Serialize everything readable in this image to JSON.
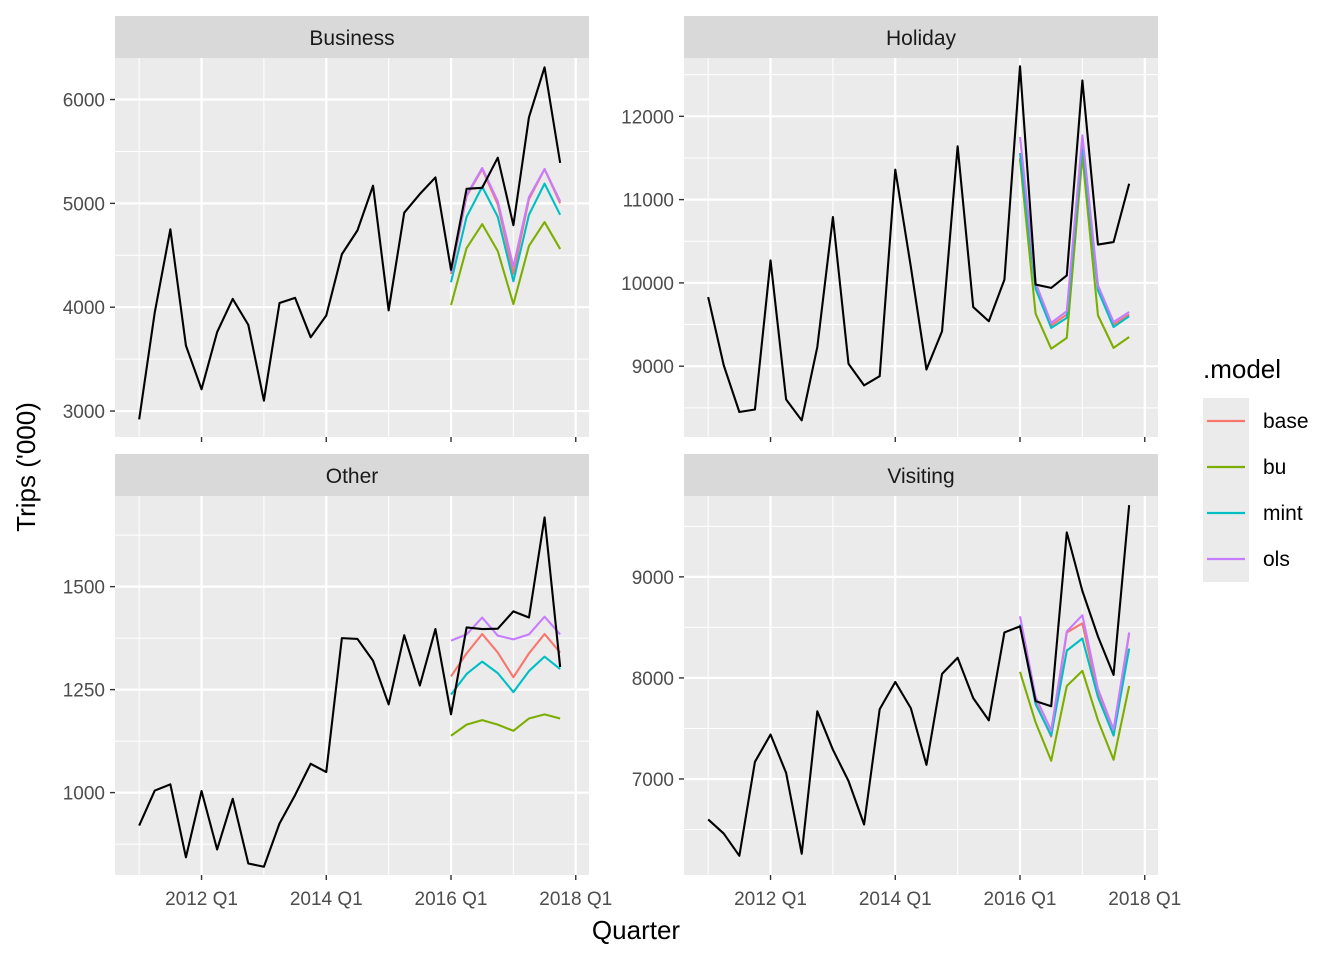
{
  "chart_data": {
    "type": "line",
    "xlabel": "Quarter",
    "ylabel": "Trips ('000)",
    "x_ticks": [
      "2012 Q1",
      "2014 Q1",
      "2016 Q1",
      "2018 Q1"
    ],
    "legend": {
      "title": ".model",
      "placement": "right",
      "entries": [
        {
          "name": "base",
          "color": "#F8766D"
        },
        {
          "name": "bu",
          "color": "#7CAE00"
        },
        {
          "name": "mint",
          "color": "#00BFC4"
        },
        {
          "name": "ols",
          "color": "#C77CFF"
        }
      ]
    },
    "grid": true,
    "x_start": "2011 Q1",
    "x_end": "2017 Q4",
    "forecast_start": "2016 Q1",
    "panels": [
      {
        "name": "Business",
        "ylim": [
          2750,
          6400
        ],
        "y_ticks": [
          3000,
          4000,
          5000,
          6000
        ],
        "actual": [
          2920,
          3950,
          4750,
          3630,
          3210,
          3760,
          4080,
          3830,
          3100,
          4040,
          4090,
          3710,
          3920,
          4510,
          4740,
          5170,
          3970,
          4910,
          5090,
          5250,
          4360,
          5140,
          5150,
          5440,
          4790,
          5830,
          6310,
          5390
        ],
        "forecasts": {
          "base": [
            4320,
            5070,
            5330,
            4990,
            4320,
            5040,
            5330,
            5000
          ],
          "bu": [
            4020,
            4570,
            4800,
            4540,
            4030,
            4590,
            4820,
            4560
          ],
          "mint": [
            4240,
            4870,
            5160,
            4870,
            4250,
            4890,
            5190,
            4890
          ],
          "ols": [
            4340,
            5080,
            5340,
            5020,
            4390,
            5060,
            5330,
            5020
          ]
        }
      },
      {
        "name": "Holiday",
        "ylim": [
          8150,
          12700
        ],
        "y_ticks": [
          9000,
          10000,
          11000,
          12000
        ],
        "actual": [
          9830,
          9010,
          8450,
          8480,
          10270,
          8600,
          8350,
          9230,
          10790,
          9030,
          8770,
          8880,
          11360,
          10190,
          8960,
          9420,
          11640,
          9710,
          9540,
          10040,
          12600,
          9980,
          9940,
          10090,
          12430,
          10460,
          10490,
          11190
        ],
        "forecasts": {
          "base": [
            11500,
            9980,
            9490,
            9620,
            11650,
            9950,
            9500,
            9620
          ],
          "bu": [
            11480,
            9630,
            9210,
            9340,
            11530,
            9610,
            9220,
            9350
          ],
          "mint": [
            11560,
            9930,
            9460,
            9580,
            11680,
            9910,
            9470,
            9600
          ],
          "ols": [
            11750,
            10000,
            9520,
            9660,
            11770,
            9970,
            9530,
            9650
          ]
        }
      },
      {
        "name": "Other",
        "ylim": [
          800,
          1720
        ],
        "y_ticks": [
          1000,
          1250,
          1500
        ],
        "actual": [
          920,
          1005,
          1020,
          843,
          1004,
          862,
          985,
          828,
          820,
          925,
          994,
          1070,
          1050,
          1375,
          1373,
          1320,
          1214,
          1382,
          1260,
          1397,
          1190,
          1401,
          1397,
          1398,
          1440,
          1425,
          1668,
          1305
        ],
        "forecasts": {
          "base": [
            1282,
            1338,
            1385,
            1340,
            1280,
            1338,
            1385,
            1340
          ],
          "bu": [
            1138,
            1165,
            1176,
            1165,
            1150,
            1180,
            1190,
            1180
          ],
          "mint": [
            1238,
            1288,
            1318,
            1290,
            1244,
            1295,
            1330,
            1300
          ],
          "ols": [
            1369,
            1384,
            1425,
            1381,
            1372,
            1384,
            1427,
            1384
          ]
        }
      },
      {
        "name": "Visiting",
        "ylim": [
          6050,
          9800
        ],
        "y_ticks": [
          7000,
          8000,
          9000
        ],
        "actual": [
          6600,
          6460,
          6240,
          7170,
          7440,
          7060,
          6260,
          7670,
          7290,
          6980,
          6550,
          7690,
          7960,
          7700,
          7140,
          8040,
          8200,
          7800,
          7580,
          8450,
          8510,
          7770,
          7720,
          9440,
          8860,
          8410,
          8030,
          9710
        ],
        "forecasts": {
          "base": [
            8520,
            7760,
            7420,
            8450,
            8540,
            7840,
            7430,
            8440
          ],
          "bu": [
            8060,
            7560,
            7180,
            7920,
            8070,
            7580,
            7190,
            7920
          ],
          "mint": [
            8530,
            7740,
            7430,
            8270,
            8390,
            7810,
            7430,
            8290
          ],
          "ols": [
            8610,
            7810,
            7480,
            8460,
            8620,
            7890,
            7490,
            8450
          ]
        }
      }
    ]
  }
}
